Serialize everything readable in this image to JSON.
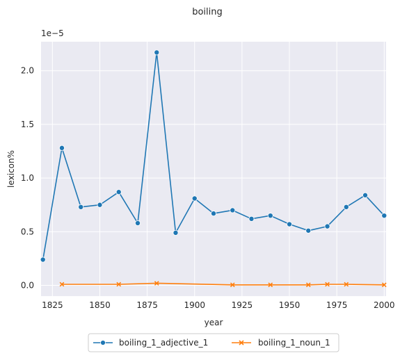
{
  "chart_data": {
    "type": "line",
    "title": "boiling",
    "xlabel": "year",
    "ylabel": "lexicon%",
    "y_offset_label": "1e−5",
    "xlim": [
      1819,
      2001
    ],
    "ylim": [
      -1e-06,
      2.27e-05
    ],
    "x_ticks": [
      1825,
      1850,
      1875,
      1900,
      1925,
      1950,
      1975,
      2000
    ],
    "y_ticks": [
      0.0,
      5e-06,
      1e-05,
      1.5e-05,
      2e-05
    ],
    "y_tick_labels": [
      "0.0",
      "0.5",
      "1.0",
      "1.5",
      "2.0"
    ],
    "grid": true,
    "legend_position": "bottom-center",
    "series": [
      {
        "name": "boiling_1_adjective_1",
        "color": "#1f77b4",
        "marker": "circle",
        "x": [
          1820,
          1830,
          1840,
          1850,
          1860,
          1870,
          1880,
          1890,
          1900,
          1910,
          1920,
          1930,
          1940,
          1950,
          1960,
          1970,
          1980,
          1990,
          2000
        ],
        "y": [
          2.4e-06,
          1.28e-05,
          7.3e-06,
          7.5e-06,
          8.7e-06,
          5.8e-06,
          2.17e-05,
          4.9e-06,
          8.1e-06,
          6.7e-06,
          7e-06,
          6.2e-06,
          6.5e-06,
          5.7e-06,
          5.1e-06,
          5.5e-06,
          7.3e-06,
          8.4e-06,
          6.5e-06
        ]
      },
      {
        "name": "boiling_1_noun_1",
        "color": "#ff7f0e",
        "marker": "x",
        "x": [
          1830,
          1860,
          1880,
          1920,
          1940,
          1960,
          1970,
          1980,
          2000
        ],
        "y": [
          1e-07,
          1e-07,
          2e-07,
          5e-08,
          5e-08,
          5e-08,
          1e-07,
          1e-07,
          5e-08
        ]
      }
    ]
  }
}
